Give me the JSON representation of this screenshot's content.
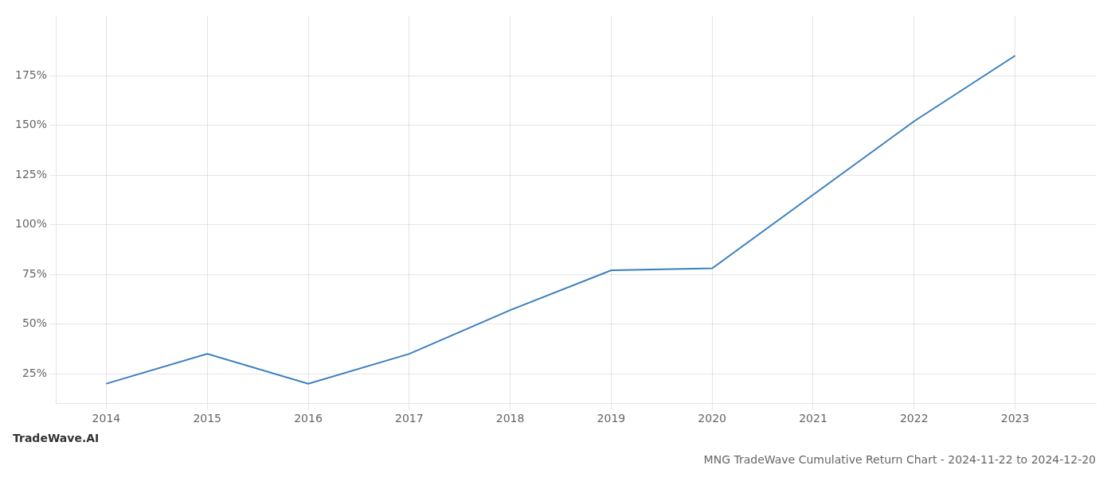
{
  "chart_data": {
    "type": "line",
    "title": "MNG TradeWave Cumulative Return Chart - 2024-11-22 to 2024-12-20",
    "subtitle": "TradeWave.AI",
    "x": [
      2014,
      2015,
      2016,
      2017,
      2018,
      2019,
      2020,
      2021,
      2022,
      2023
    ],
    "values": [
      20,
      35,
      20,
      35,
      57,
      77,
      78,
      115,
      152,
      185
    ],
    "color": "#3a7ebf",
    "xlim": [
      2013.5,
      2023.8
    ],
    "xticks": [
      2014,
      2015,
      2016,
      2017,
      2018,
      2019,
      2020,
      2021,
      2022,
      2023
    ],
    "ylim": [
      10,
      205
    ],
    "yticks": [
      {
        "value": 25,
        "label": "25%"
      },
      {
        "value": 50,
        "label": "50%"
      },
      {
        "value": 75,
        "label": "75%"
      },
      {
        "value": 100,
        "label": "100%"
      },
      {
        "value": 125,
        "label": "125%"
      },
      {
        "value": 150,
        "label": "150%"
      },
      {
        "value": 175,
        "label": "175%"
      }
    ],
    "grid": true
  }
}
